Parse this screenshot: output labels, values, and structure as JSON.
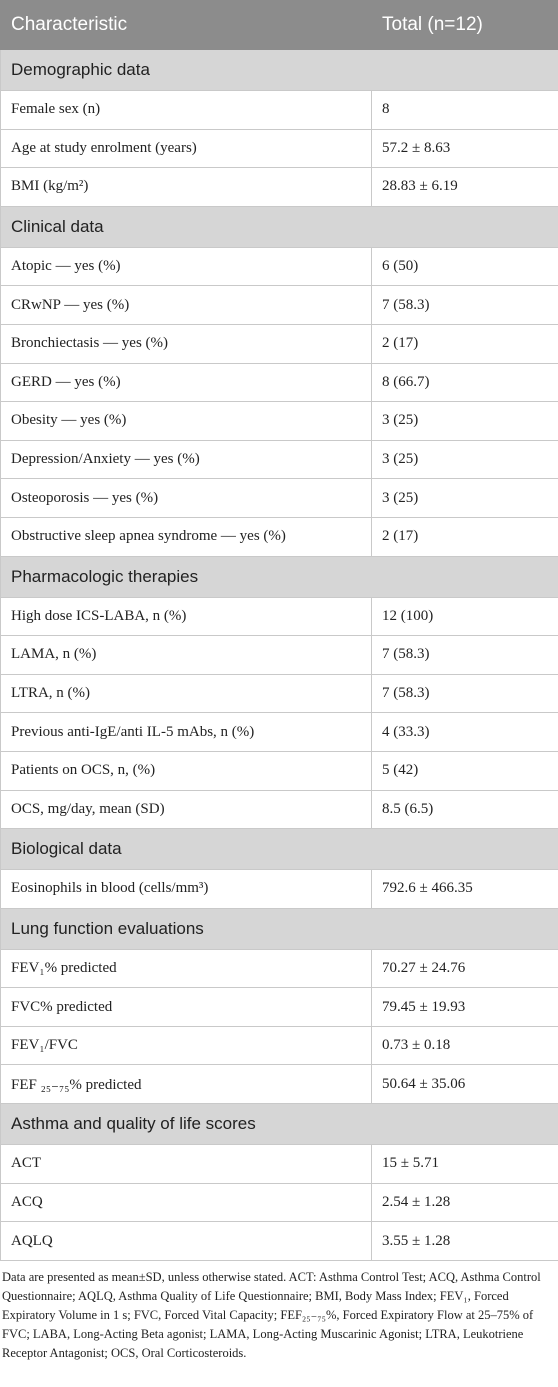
{
  "header": {
    "col1": "Characteristic",
    "col2": "Total (n=12)"
  },
  "sections": [
    {
      "title": "Demographic data",
      "rows": [
        {
          "label": "Female sex (n)",
          "value": "8"
        },
        {
          "label": "Age at study enrolment (years)",
          "value": "57.2 ± 8.63"
        },
        {
          "label": "BMI (kg/m²)",
          "value": "28.83 ± 6.19"
        }
      ]
    },
    {
      "title": "Clinical data",
      "rows": [
        {
          "label": "Atopic — yes (%)",
          "value": "6 (50)"
        },
        {
          "label": "CRwNP — yes (%)",
          "value": "7 (58.3)"
        },
        {
          "label": "Bronchiectasis — yes (%)",
          "value": "2 (17)"
        },
        {
          "label": "GERD — yes (%)",
          "value": "8 (66.7)"
        },
        {
          "label": "Obesity — yes (%)",
          "value": "3 (25)"
        },
        {
          "label": "Depression/Anxiety — yes (%)",
          "value": "3 (25)"
        },
        {
          "label": "Osteoporosis — yes (%)",
          "value": "3 (25)"
        },
        {
          "label": "Obstructive sleep apnea syndrome — yes (%)",
          "value": "2 (17)"
        }
      ]
    },
    {
      "title": "Pharmacologic therapies",
      "rows": [
        {
          "label": "High dose ICS-LABA, n (%)",
          "value": "12 (100)"
        },
        {
          "label": "LAMA, n (%)",
          "value": "7 (58.3)"
        },
        {
          "label": "LTRA, n (%)",
          "value": "7 (58.3)"
        },
        {
          "label": "Previous anti-IgE/anti IL-5 mAbs, n (%)",
          "value": "4 (33.3)"
        },
        {
          "label": "Patients on OCS, n, (%)",
          "value": "5 (42)"
        },
        {
          "label": "OCS, mg/day, mean (SD)",
          "value": "8.5 (6.5)"
        }
      ]
    },
    {
      "title": "Biological data",
      "rows": [
        {
          "label": "Eosinophils in blood (cells/mm³)",
          "value": "792.6 ± 466.35"
        }
      ]
    },
    {
      "title": "Lung function evaluations",
      "rows": [
        {
          "label": "FEV₁% predicted",
          "value": "70.27 ± 24.76"
        },
        {
          "label": "FVC% predicted",
          "value": "79.45 ± 19.93"
        },
        {
          "label": "FEV₁/FVC",
          "value": "0.73 ± 0.18"
        },
        {
          "label": "FEF ₂₅₋₇₅% predicted",
          "value": "50.64 ± 35.06"
        }
      ]
    },
    {
      "title": "Asthma and quality of life scores",
      "rows": [
        {
          "label": "ACT",
          "value": "15 ± 5.71"
        },
        {
          "label": "ACQ",
          "value": "2.54 ± 1.28"
        },
        {
          "label": "AQLQ",
          "value": "3.55 ± 1.28"
        }
      ]
    }
  ],
  "footnote": "Data are presented as mean±SD, unless otherwise stated. ACT: Asthma Control Test; ACQ, Asthma Control Questionnaire; AQLQ, Asthma Quality of Life Questionnaire; BMI, Body Mass Index; FEV₁, Forced Expiratory Volume in 1 s; FVC, Forced Vital Capacity; FEF₂₅₋₇₅%, Forced Expiratory Flow at 25–75% of FVC; LABA, Long-Acting Beta agonist; LAMA, Long-Acting Muscarinic Agonist; LTRA, Leukotriene Receptor Antagonist; OCS, Oral Corticosteroids."
}
